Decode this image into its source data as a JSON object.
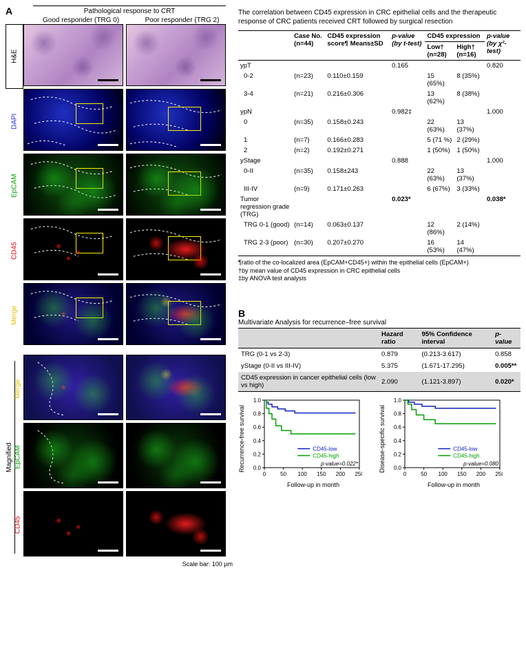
{
  "panelA": {
    "letter": "A",
    "top_label": "Pathological response to CRT",
    "col_headers": [
      "Good responder (TRG 0)",
      "Poor responder (TRG 2)"
    ],
    "row_labels": [
      "H&E",
      "DAPI",
      "EpCAM",
      "CD45",
      "Merge"
    ],
    "magnified_label": "Magnified",
    "mag_row_labels": [
      "Merge",
      "EpCAM",
      "CD45"
    ],
    "row_label_colors": [
      "#000000",
      "#2030e0",
      "#00a000",
      "#e00000",
      "#e0c000"
    ],
    "scale_note": "Scale bar: 100 µm",
    "roi_box_color": "#ffee00"
  },
  "tableA": {
    "title": "The correlation between CD45 expression in CRC epithelial cells and the therapeutic response of CRC patients received CRT followed by surgical resection",
    "headers": {
      "case_no": "Case No. (n=44)",
      "score": "CD45 expression score¶ Means±SD",
      "p_ttest": "p-value (by t-test)",
      "cd45_header": "CD45 expression",
      "low": "Low† (n=28)",
      "high": "High† (n=16)",
      "p_chi": "p-value (by χ²-test)"
    },
    "sections": [
      {
        "name": "ypT",
        "p_ttest": "0.165",
        "p_chi": "0.820",
        "rows": [
          {
            "label": "0-2",
            "n": "(n=23)",
            "score": "0.110±0.159",
            "low": "15 (65%)",
            "high": "8 (35%)"
          },
          {
            "label": "3-4",
            "n": "(n=21)",
            "score": "0.216±0.306",
            "low": "13 (62%)",
            "high": "8 (38%)"
          }
        ]
      },
      {
        "name": "ypN",
        "p_ttest": "0.982‡",
        "p_chi": "1.000",
        "rows": [
          {
            "label": "0",
            "n": "(n=35)",
            "score": "0.158±0.243",
            "low": "22 (63%)",
            "high": "13 (37%)"
          },
          {
            "label": "1",
            "n": "(n=7)",
            "score": "0.166±0.283",
            "low": "5 (71 %)",
            "high": "2 (29%)"
          },
          {
            "label": "2",
            "n": "(n=2)",
            "score": "0.192±0.271",
            "low": "1 (50%)",
            "high": "1 (50%)"
          }
        ]
      },
      {
        "name": "yStage",
        "p_ttest": "0.888",
        "p_chi": "1.000",
        "rows": [
          {
            "label": "0-II",
            "n": "(n=35)",
            "score": "0.158±243",
            "low": "22 (63%)",
            "high": "13 (37%)"
          },
          {
            "label": "III-IV",
            "n": "(n=9)",
            "score": "0.171±0.263",
            "low": "6 (67%)",
            "high": "3 (33%)"
          }
        ]
      },
      {
        "name": "Tumor regression grade (TRG)",
        "p_ttest": "0.023*",
        "p_chi": "0.038*",
        "p_bold": true,
        "rows": [
          {
            "label": "TRG 0-1 (good)",
            "n": "(n=14)",
            "score": "0.063±0.137",
            "low": "12 (86%)",
            "high": "2 (14%)"
          },
          {
            "label": "TRG 2-3 (poor)",
            "n": "(n=30)",
            "score": "0.207±0.270",
            "low": "16 (53%)",
            "high": "14 (47%)"
          }
        ]
      }
    ],
    "footnotes": [
      "¶ratio of the co-localized area (EpCAM+CD45+) within the epithelial cells (EpCAM+)",
      "†by mean value of CD45 expression in CRC epithelial cells",
      "‡by ANOVA test analysis"
    ]
  },
  "panelB": {
    "letter": "B",
    "mva_title": "Multivariate Analysis for recurrence–free survival",
    "mva_headers": [
      "",
      "Hazard ratio",
      "95% Confidence interval",
      "p-value"
    ],
    "mva_rows": [
      {
        "label": "TRG (0-1 vs 2-3)",
        "hr": "0.879",
        "ci": "(0.213-3.617)",
        "p": "0.858",
        "hl": false,
        "bold": false
      },
      {
        "label": "yStage (0-II vs III-IV)",
        "hr": "5.375",
        "ci": "(1.671-17.295)",
        "p": "0.005**",
        "hl": false,
        "bold": true
      },
      {
        "label": "CD45 expression in cancer epithelial cells (low vs high)",
        "hr": "2.090",
        "ci": "(1.121-3.897)",
        "p": "0.020*",
        "hl": true,
        "bold": true
      }
    ],
    "km": {
      "xlabel": "Follow-up in month",
      "xlim": [
        0,
        250
      ],
      "xticks": [
        0,
        50,
        100,
        150,
        200,
        250
      ],
      "ylim": [
        0.0,
        1.0
      ],
      "yticks": [
        0.0,
        0.2,
        0.4,
        0.6,
        0.8,
        1.0
      ],
      "legend": [
        {
          "label": "CD45-low",
          "color": "#1020c0"
        },
        {
          "label": "CD45-high",
          "color": "#00a000"
        }
      ],
      "plots": [
        {
          "ylabel": "Recurrence-free survival",
          "pvalue": "p-value=0.022*",
          "series": {
            "low": [
              [
                0,
                1.0
              ],
              [
                5,
                0.97
              ],
              [
                10,
                0.94
              ],
              [
                20,
                0.9
              ],
              [
                35,
                0.87
              ],
              [
                55,
                0.84
              ],
              [
                80,
                0.81
              ],
              [
                120,
                0.81
              ],
              [
                160,
                0.81
              ],
              [
                200,
                0.81
              ],
              [
                240,
                0.81
              ]
            ],
            "high": [
              [
                0,
                1.0
              ],
              [
                5,
                0.88
              ],
              [
                12,
                0.8
              ],
              [
                20,
                0.72
              ],
              [
                30,
                0.62
              ],
              [
                45,
                0.55
              ],
              [
                70,
                0.5
              ],
              [
                110,
                0.5
              ],
              [
                160,
                0.5
              ],
              [
                200,
                0.5
              ],
              [
                240,
                0.5
              ]
            ]
          }
        },
        {
          "ylabel": "Disease-specific survival",
          "pvalue": "p-value=0.080",
          "series": {
            "low": [
              [
                0,
                1.0
              ],
              [
                10,
                0.97
              ],
              [
                25,
                0.94
              ],
              [
                45,
                0.91
              ],
              [
                80,
                0.88
              ],
              [
                130,
                0.88
              ],
              [
                180,
                0.88
              ],
              [
                240,
                0.88
              ]
            ],
            "high": [
              [
                0,
                1.0
              ],
              [
                8,
                0.94
              ],
              [
                18,
                0.86
              ],
              [
                30,
                0.78
              ],
              [
                50,
                0.71
              ],
              [
                80,
                0.65
              ],
              [
                130,
                0.65
              ],
              [
                180,
                0.65
              ],
              [
                240,
                0.65
              ]
            ]
          }
        }
      ]
    }
  },
  "colors": {
    "low": "#1020c0",
    "high": "#00a000",
    "axis": "#000000",
    "grid": "#e5e5e5"
  }
}
